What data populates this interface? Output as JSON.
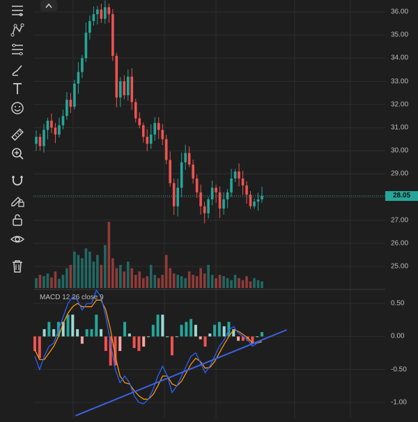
{
  "toolbar": {
    "tools": [
      {
        "name": "crosshair-lines-icon"
      },
      {
        "name": "pattern-icon"
      },
      {
        "name": "fib-icon"
      },
      {
        "name": "brush-icon"
      },
      {
        "name": "text-icon",
        "glyph": "T"
      },
      {
        "name": "emoji-icon"
      },
      {
        "name": "ruler-icon"
      },
      {
        "name": "zoom-in-icon"
      },
      {
        "name": "magnet-icon"
      },
      {
        "name": "lock-pencil-icon"
      },
      {
        "name": "unlock-icon"
      },
      {
        "name": "eye-icon"
      },
      {
        "name": "trash-icon"
      }
    ]
  },
  "price_axis": {
    "labels": [
      "36.00",
      "35.00",
      "34.00",
      "33.00",
      "32.00",
      "31.00",
      "30.00",
      "29.00",
      "28.00",
      "27.00",
      "26.00",
      "25.00"
    ],
    "last_price": "28.05",
    "up_color": "#26a69a",
    "down_color": "#ef5350"
  },
  "macd": {
    "label": "MACD 12 26 close 9",
    "axis_labels": [
      "0.50",
      "0.00",
      "-0.50",
      "-1.00"
    ],
    "macd_color": "#2962ff",
    "signal_color": "#ff9800",
    "trendline_color": "#3b63e6"
  },
  "chart_data": {
    "type": "candlestick",
    "price_ylim": [
      24.7,
      36.3
    ],
    "macd_ylim": [
      -1.2,
      0.6
    ],
    "last_price": 28.05,
    "closes": [
      30.6,
      30.2,
      30.9,
      31.3,
      31.0,
      30.7,
      31.1,
      31.5,
      32.2,
      31.9,
      32.9,
      33.4,
      34.0,
      35.1,
      35.6,
      35.9,
      36.1,
      35.7,
      36.2,
      35.9,
      34.1,
      32.3,
      33.0,
      32.4,
      33.2,
      32.1,
      31.4,
      31.1,
      30.6,
      30.3,
      30.7,
      31.2,
      30.9,
      30.5,
      29.6,
      28.6,
      27.6,
      28.4,
      29.5,
      29.9,
      29.4,
      28.8,
      28.2,
      27.6,
      27.3,
      27.9,
      28.4,
      28.2,
      27.5,
      27.9,
      28.2,
      28.8,
      29.1,
      28.8,
      28.5,
      28.1,
      27.6,
      27.8,
      27.9,
      28.05
    ],
    "volumes": [
      0.15,
      0.2,
      0.18,
      0.22,
      0.16,
      0.25,
      0.14,
      0.2,
      0.3,
      0.35,
      0.55,
      0.5,
      0.45,
      0.6,
      0.55,
      0.4,
      0.5,
      0.35,
      0.65,
      1.0,
      0.45,
      0.3,
      0.35,
      0.25,
      0.4,
      0.3,
      0.2,
      0.25,
      0.15,
      0.18,
      0.35,
      0.2,
      0.15,
      0.2,
      0.5,
      0.3,
      0.22,
      0.2,
      0.18,
      0.15,
      0.25,
      0.2,
      0.18,
      0.3,
      0.22,
      0.35,
      0.2,
      0.15,
      0.2,
      0.18,
      0.15,
      0.12,
      0.2,
      0.15,
      0.12,
      0.18,
      0.1,
      0.15,
      0.12,
      0.1
    ],
    "macd_line": [
      -0.3,
      -0.5,
      -0.3,
      -0.15,
      -0.1,
      0.1,
      0.3,
      0.5,
      0.6,
      0.55,
      0.4,
      0.5,
      0.5,
      0.7,
      0.6,
      0.3,
      -0.1,
      -0.5,
      -0.7,
      -0.6,
      -0.7,
      -0.9,
      -1.0,
      -1.02,
      -0.95,
      -0.8,
      -0.6,
      -0.45,
      -0.6,
      -0.85,
      -0.75,
      -0.6,
      -0.45,
      -0.3,
      -0.25,
      -0.4,
      -0.55,
      -0.45,
      -0.3,
      -0.15,
      -0.05,
      0.1,
      0.15,
      0.05,
      0.0,
      -0.05,
      -0.15,
      -0.1,
      -0.05
    ],
    "signal_line": [
      -0.2,
      -0.35,
      -0.35,
      -0.25,
      -0.15,
      0.0,
      0.2,
      0.35,
      0.45,
      0.5,
      0.45,
      0.45,
      0.45,
      0.55,
      0.55,
      0.4,
      0.1,
      -0.3,
      -0.6,
      -0.7,
      -0.72,
      -0.82,
      -0.9,
      -0.95,
      -0.95,
      -0.88,
      -0.75,
      -0.6,
      -0.6,
      -0.72,
      -0.75,
      -0.68,
      -0.55,
      -0.42,
      -0.33,
      -0.38,
      -0.48,
      -0.47,
      -0.38,
      -0.25,
      -0.12,
      0.0,
      0.1,
      0.08,
      0.03,
      -0.02,
      -0.1,
      -0.1,
      -0.08
    ],
    "trendline": [
      [
        0.12,
        -1.2
      ],
      [
        0.72,
        0.1
      ]
    ]
  }
}
